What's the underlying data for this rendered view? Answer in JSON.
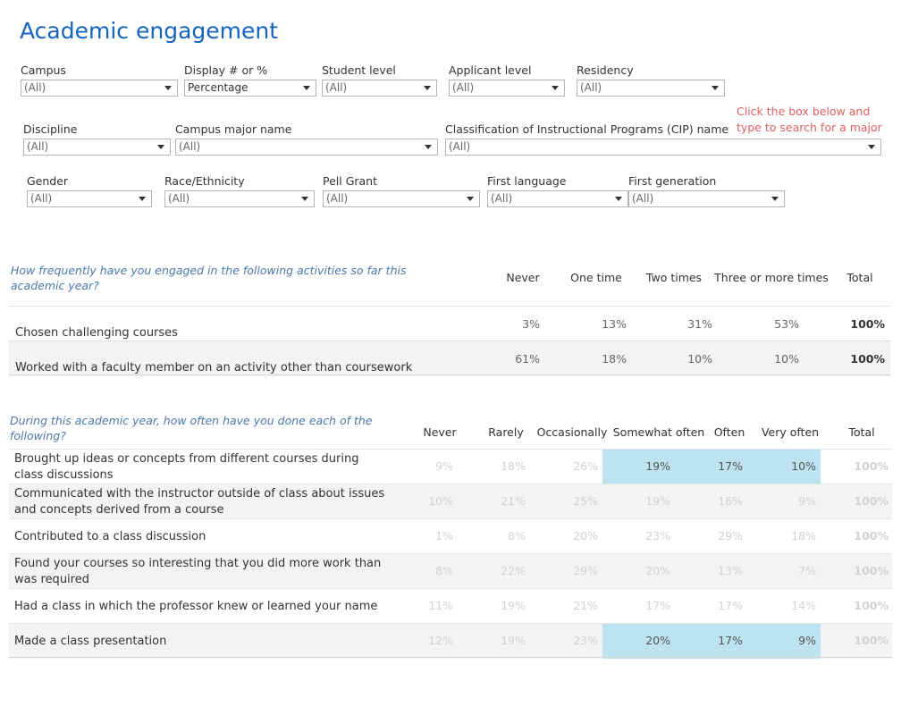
{
  "title": "Academic engagement",
  "hint": "Click the box below and type to search for a major",
  "filters_row1": [
    {
      "label": "Campus",
      "value": "(All)"
    },
    {
      "label": "Display # or %",
      "value": "Percentage"
    },
    {
      "label": "Student level",
      "value": "(All)"
    },
    {
      "label": "Applicant level",
      "value": "(All)"
    },
    {
      "label": "Residency",
      "value": "(All)"
    }
  ],
  "filters_row2": [
    {
      "label": "Discipline",
      "value": "(All)"
    },
    {
      "label": "Campus major name",
      "value": "(All)"
    },
    {
      "label": "Classification of Instructional Programs (CIP) name",
      "value": "(All)"
    }
  ],
  "filters_row3": [
    {
      "label": "Gender",
      "value": "(All)"
    },
    {
      "label": "Race/Ethnicity",
      "value": "(All)"
    },
    {
      "label": "Pell Grant",
      "value": "(All)"
    },
    {
      "label": "First language",
      "value": "(All)"
    },
    {
      "label": "First generation",
      "value": "(All)"
    }
  ],
  "table1": {
    "question": "How frequently have you engaged in the following activities so far this academic year?",
    "columns": [
      "Never",
      "One time",
      "Two times",
      "Three or more times",
      "Total"
    ],
    "rows": [
      {
        "label": "Chosen challenging courses",
        "values": [
          "3%",
          "13%",
          "31%",
          "53%",
          "100%"
        ]
      },
      {
        "label": "Worked with a faculty member on an activity other than coursework",
        "values": [
          "61%",
          "18%",
          "10%",
          "10%",
          "100%"
        ]
      }
    ]
  },
  "table2": {
    "question": "During this academic year, how often have you done each of the following?",
    "columns": [
      "Never",
      "Rarely",
      "Occasionally",
      "Somewhat often",
      "Often",
      "Very often",
      "Total"
    ],
    "highlight_color": "#bde3f0",
    "rows": [
      {
        "label": "Brought up ideas or concepts from different courses during class discussions",
        "values": [
          "9%",
          "18%",
          "26%",
          "19%",
          "17%",
          "10%",
          "100%"
        ]
      },
      {
        "label": "Communicated with the instructor outside of class about issues and concepts derived from a course",
        "values": [
          "10%",
          "21%",
          "25%",
          "19%",
          "16%",
          "9%",
          "100%"
        ]
      },
      {
        "label": "Contributed to a class discussion",
        "values": [
          "1%",
          "8%",
          "20%",
          "23%",
          "29%",
          "18%",
          "100%"
        ]
      },
      {
        "label": "Found your courses so interesting that you did more work than was required",
        "values": [
          "8%",
          "22%",
          "29%",
          "20%",
          "13%",
          "7%",
          "100%"
        ]
      },
      {
        "label": "Had a class in which the professor knew or learned your name",
        "values": [
          "11%",
          "19%",
          "21%",
          "17%",
          "17%",
          "14%",
          "100%"
        ]
      },
      {
        "label": "Made a class presentation",
        "values": [
          "12%",
          "19%",
          "23%",
          "20%",
          "17%",
          "9%",
          "100%"
        ]
      }
    ]
  }
}
